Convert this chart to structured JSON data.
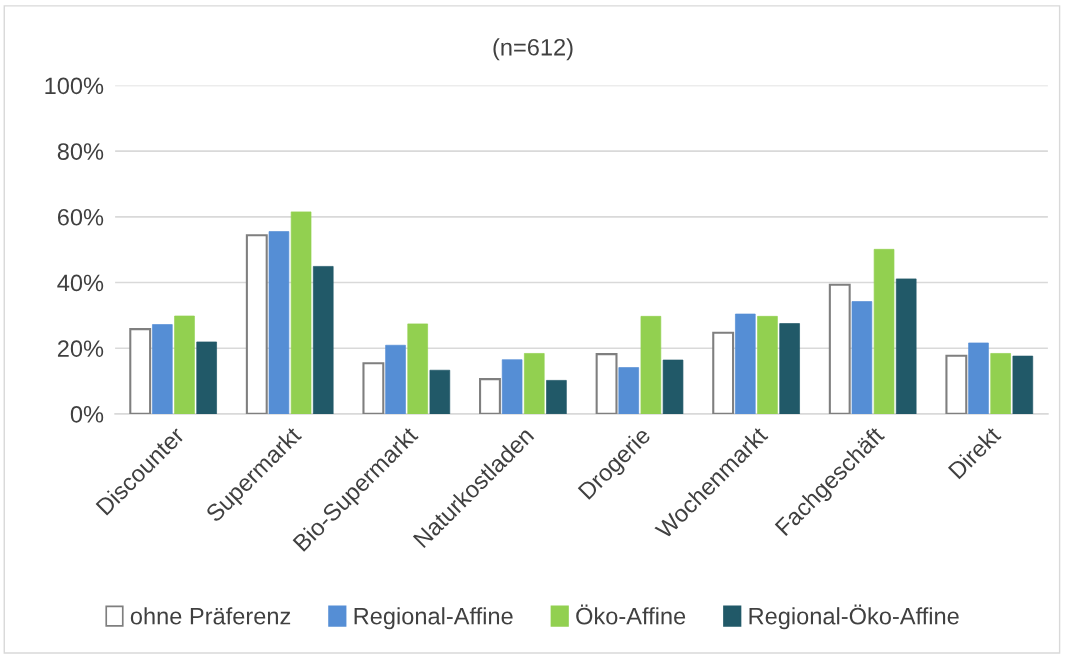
{
  "chart_data": {
    "type": "bar",
    "title": "(n=612)",
    "categories": [
      "Discounter",
      "Supermarkt",
      "Bio-Supermarkt",
      "Naturkostladen",
      "Drogerie",
      "Wochenmarkt",
      "Fachgeschäft",
      "Direkt"
    ],
    "series": [
      {
        "name": "ohne Präferenz",
        "color": "#ffffff",
        "values": [
          25.8,
          54.4,
          15.4,
          10.6,
          18.2,
          24.7,
          39.3,
          17.7
        ]
      },
      {
        "name": "Regional-Affine",
        "color": "#558ed5",
        "values": [
          27.2,
          55.5,
          20.9,
          16.5,
          14.1,
          30.4,
          34.2,
          21.6
        ]
      },
      {
        "name": "Öko-Affine",
        "color": "#92d050",
        "values": [
          29.8,
          61.5,
          27.4,
          18.4,
          29.7,
          29.7,
          50.1,
          18.4
        ]
      },
      {
        "name": "Regional-Öko-Affine",
        "color": "#215968",
        "values": [
          21.9,
          44.9,
          13.3,
          10.2,
          16.4,
          27.5,
          41.1,
          17.6
        ]
      }
    ],
    "ylim": [
      0,
      100
    ],
    "yticks": [
      {
        "value": 0,
        "label": "0%"
      },
      {
        "value": 20,
        "label": "20%"
      },
      {
        "value": 40,
        "label": "40%"
      },
      {
        "value": 60,
        "label": "60%"
      },
      {
        "value": 80,
        "label": "80%"
      },
      {
        "value": 100,
        "label": "100%"
      }
    ],
    "grid": "y",
    "legend": "bottom"
  }
}
